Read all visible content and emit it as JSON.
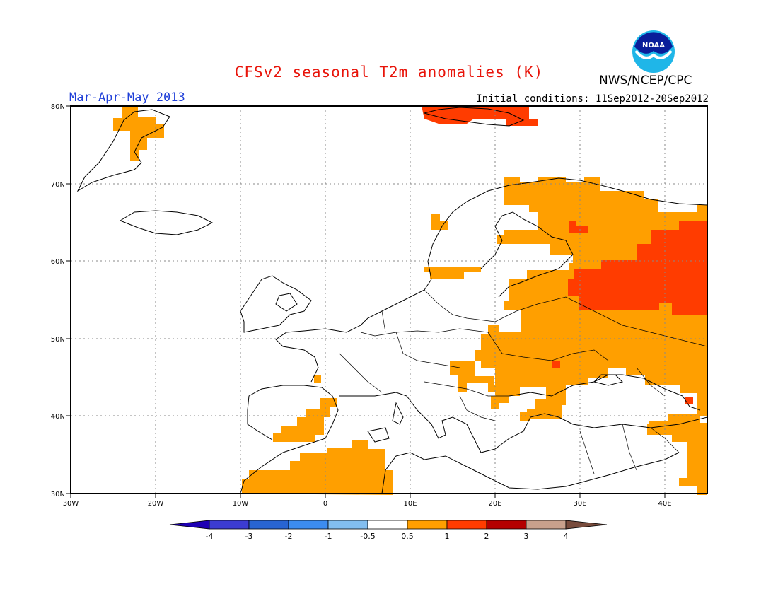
{
  "header": {
    "title": "CFSv2 seasonal T2m anomalies (K)",
    "period": "Mar-Apr-May 2013",
    "initial_conditions": "Initial conditions: 11Sep2012-20Sep2012",
    "agency": "NWS/NCEP/CPC",
    "logo_text": "NOAA"
  },
  "map": {
    "region": "Europe",
    "lon_range": [
      -30,
      45
    ],
    "lat_range": [
      30,
      80
    ],
    "lon_ticks": [
      "30W",
      "20W",
      "10W",
      "0",
      "10E",
      "20E",
      "30E",
      "40E"
    ],
    "lat_ticks": [
      "30N",
      "40N",
      "50N",
      "60N",
      "70N",
      "80N"
    ]
  },
  "legend": {
    "labels": [
      "-4",
      "-3",
      "-2",
      "-1",
      "-0.5",
      "0.5",
      "1",
      "2",
      "3",
      "4"
    ],
    "colors": [
      "#1e00b4",
      "#3c3cd2",
      "#2864d2",
      "#3c8cf0",
      "#82bef0",
      "#ffffff",
      "#ff9f00",
      "#ff3c00",
      "#b40000",
      "#c8a08c",
      "#784b3c"
    ]
  }
}
